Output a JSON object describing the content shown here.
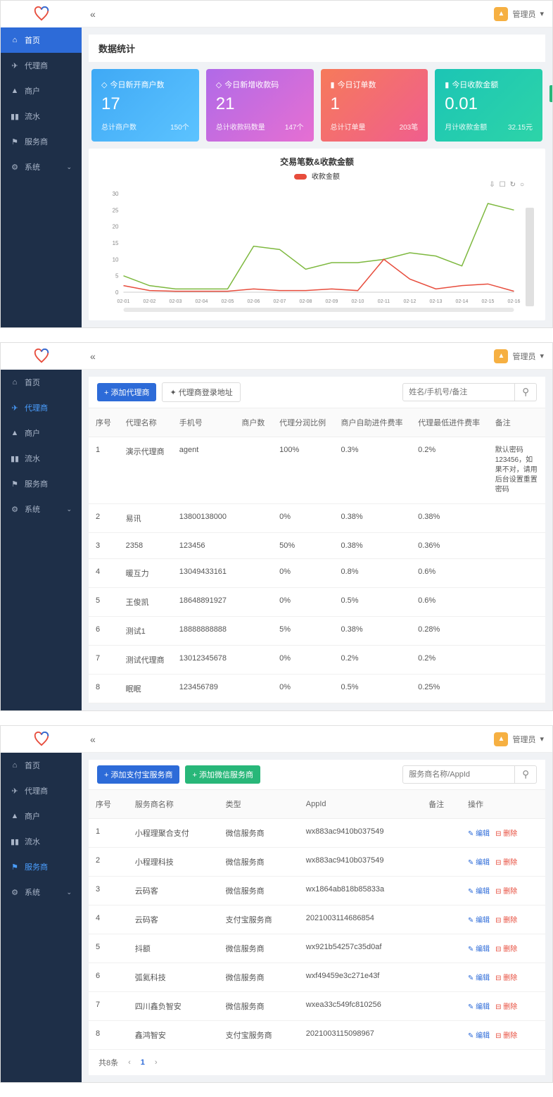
{
  "user": {
    "name": "管理员",
    "dropdown": "▾"
  },
  "collapse_icon": "«",
  "nav": {
    "home": "首页",
    "agent": "代理商",
    "merchant": "商户",
    "flow": "流水",
    "service": "服务商",
    "system": "系统"
  },
  "panel1": {
    "section_title": "数据统计",
    "cards": [
      {
        "icon": "◇",
        "title": "今日新开商户数",
        "value": "17",
        "sub_label": "总计商户数",
        "sub_value": "150个"
      },
      {
        "icon": "◇",
        "title": "今日新增收款码",
        "value": "21",
        "sub_label": "总计收款码数量",
        "sub_value": "147个"
      },
      {
        "icon": "▮",
        "title": "今日订单数",
        "value": "1",
        "sub_label": "总计订单量",
        "sub_value": "203笔"
      },
      {
        "icon": "▮",
        "title": "今日收款金额",
        "value": "0.01",
        "sub_label": "月计收款金额",
        "sub_value": "32.15元"
      }
    ],
    "chart": {
      "title": "交易笔数&收款金额",
      "legend_label": "收款金额",
      "legend_color": "#e74c3c",
      "tools": [
        "⇩",
        "☐",
        "↻",
        "○"
      ],
      "y_ticks": [
        0,
        5,
        10,
        15,
        20,
        25,
        30
      ],
      "x_labels": [
        "02-01",
        "02-02",
        "02-03",
        "02-04",
        "02-05",
        "02-06",
        "02-07",
        "02-08",
        "02-09",
        "02-10",
        "02-11",
        "02-12",
        "02-13",
        "02-14",
        "02-15",
        "02-16"
      ],
      "series_green": {
        "color": "#7db83e",
        "values": [
          5,
          2,
          1,
          1,
          1,
          14,
          13,
          7,
          9,
          9,
          10,
          12,
          11,
          8,
          27,
          25
        ]
      },
      "series_red": {
        "color": "#e74c3c",
        "values": [
          2,
          0.5,
          0.3,
          0.3,
          0.3,
          1,
          0.5,
          0.5,
          1,
          0.5,
          10,
          4,
          1,
          2,
          2.5,
          0.3
        ]
      }
    }
  },
  "panel2": {
    "btn_add": "+ 添加代理商",
    "btn_url": "✦ 代理商登录地址",
    "search_placeholder": "姓名/手机号/备注",
    "columns": [
      "序号",
      "代理名称",
      "手机号",
      "商户数",
      "代理分润比例",
      "商户自助进件费率",
      "代理最低进件费率",
      "备注"
    ],
    "rows": [
      {
        "idx": "1",
        "name": "演示代理商",
        "phone": "agent",
        "merch": "",
        "rate1": "100%",
        "rate2": "0.3%",
        "rate3": "0.2%",
        "note": "默认密码123456，如果不对，请用后台设置重置密码"
      },
      {
        "idx": "2",
        "name": "易讯",
        "phone": "13800138000",
        "merch": "",
        "rate1": "0%",
        "rate2": "0.38%",
        "rate3": "0.38%",
        "note": ""
      },
      {
        "idx": "3",
        "name": "2358",
        "phone": "123456",
        "merch": "",
        "rate1": "50%",
        "rate2": "0.38%",
        "rate3": "0.36%",
        "note": ""
      },
      {
        "idx": "4",
        "name": "暖互力",
        "phone": "13049433161",
        "merch": "",
        "rate1": "0%",
        "rate2": "0.8%",
        "rate3": "0.6%",
        "note": ""
      },
      {
        "idx": "5",
        "name": "王俊凯",
        "phone": "18648891927",
        "merch": "",
        "rate1": "0%",
        "rate2": "0.5%",
        "rate3": "0.6%",
        "note": ""
      },
      {
        "idx": "6",
        "name": "测试1",
        "phone": "18888888888",
        "merch": "",
        "rate1": "5%",
        "rate2": "0.38%",
        "rate3": "0.28%",
        "note": ""
      },
      {
        "idx": "7",
        "name": "测试代理商",
        "phone": "13012345678",
        "merch": "",
        "rate1": "0%",
        "rate2": "0.2%",
        "rate3": "0.2%",
        "note": ""
      },
      {
        "idx": "8",
        "name": "眠眠",
        "phone": "123456789",
        "merch": "",
        "rate1": "0%",
        "rate2": "0.5%",
        "rate3": "0.25%",
        "note": ""
      }
    ]
  },
  "panel3": {
    "btn_add1": "+ 添加支付宝服务商",
    "btn_add2": "+ 添加微信服务商",
    "search_placeholder": "服务商名称/AppId",
    "columns": [
      "序号",
      "服务商名称",
      "类型",
      "AppId",
      "备注",
      "操作"
    ],
    "action_edit": "✎ 编辑",
    "action_del": "⊟ 删除",
    "rows": [
      {
        "idx": "1",
        "name": "小程理聚合支付",
        "type": "微信服务商",
        "appid": "wx883ac9410b037549",
        "note": ""
      },
      {
        "idx": "2",
        "name": "小程理科技",
        "type": "微信服务商",
        "appid": "wx883ac9410b037549",
        "note": ""
      },
      {
        "idx": "3",
        "name": "云码客",
        "type": "微信服务商",
        "appid": "wx1864ab818b85833a",
        "note": ""
      },
      {
        "idx": "4",
        "name": "云码客",
        "type": "支付宝服务商",
        "appid": "2021003114686854",
        "note": ""
      },
      {
        "idx": "5",
        "name": "抖额",
        "type": "微信服务商",
        "appid": "wx921b54257c35d0af",
        "note": ""
      },
      {
        "idx": "6",
        "name": "弧氦科技",
        "type": "微信服务商",
        "appid": "wxf49459e3c271e43f",
        "note": ""
      },
      {
        "idx": "7",
        "name": "四川鑫负智安",
        "type": "微信服务商",
        "appid": "wxea33c549fc810256",
        "note": ""
      },
      {
        "idx": "8",
        "name": "鑫鸿智安",
        "type": "支付宝服务商",
        "appid": "2021003115098967",
        "note": ""
      }
    ],
    "pagination": {
      "total": "共8条",
      "current": "1"
    }
  }
}
